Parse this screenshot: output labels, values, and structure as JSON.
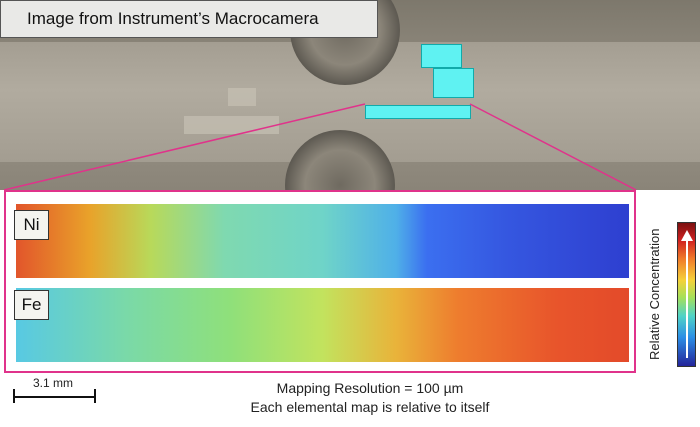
{
  "photo": {
    "title": "Image from Instrument’s Macrocamera"
  },
  "maps": [
    {
      "element": "Ni"
    },
    {
      "element": "Fe"
    }
  ],
  "colorbar": {
    "label": "Relative Concentration",
    "colors": [
      "#7b1010",
      "#d02020",
      "#f07a2a",
      "#f5d13a",
      "#a6e05a",
      "#4fd3c7",
      "#2b8ee6",
      "#24249a"
    ]
  },
  "scale": {
    "label": "3.1 mm"
  },
  "caption": {
    "line1": "Mapping Resolution = 100 µm",
    "line2": "Each elemental map is relative to itself"
  },
  "colors": {
    "highlight": "#5ff2f2",
    "frame": "#e0338b"
  }
}
